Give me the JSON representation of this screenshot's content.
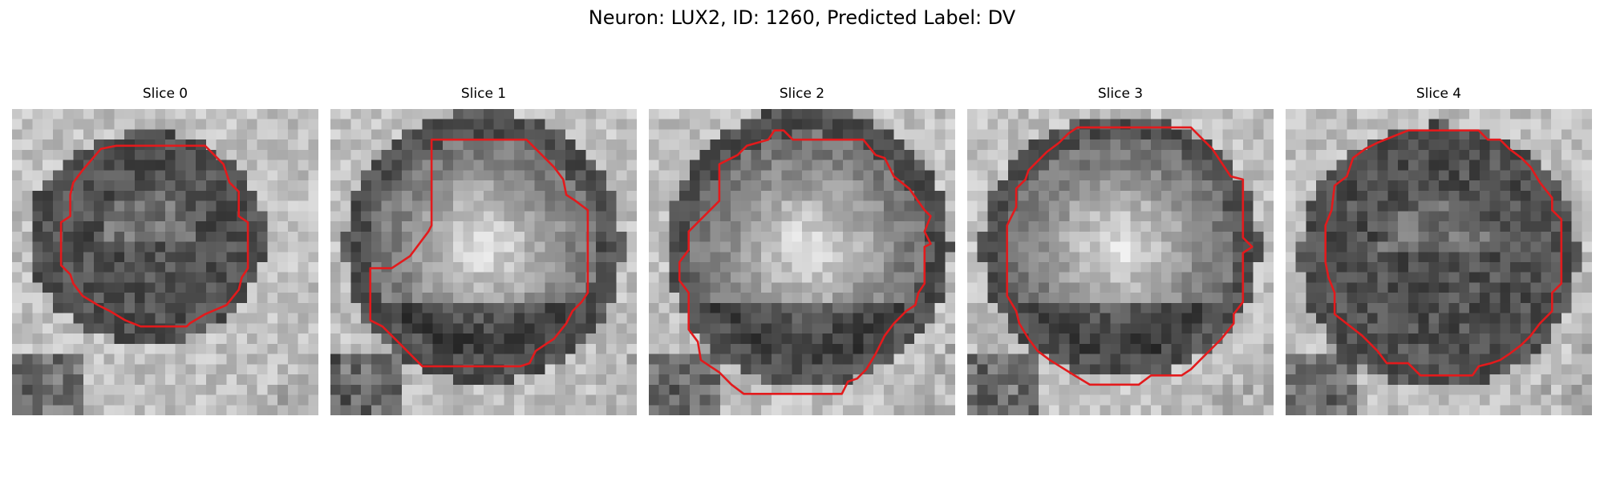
{
  "figure": {
    "title": "Neuron: LUX2, ID: 1260, Predicted Label: DV"
  },
  "colors": {
    "contour": "#e31a1c",
    "background": "#ffffff"
  },
  "panels": [
    {
      "title": "Slice 0",
      "cell_tone": "dark"
    },
    {
      "title": "Slice 1",
      "cell_tone": "bright-center"
    },
    {
      "title": "Slice 2",
      "cell_tone": "bright-center"
    },
    {
      "title": "Slice 3",
      "cell_tone": "bright-center"
    },
    {
      "title": "Slice 4",
      "cell_tone": "dark"
    }
  ]
}
